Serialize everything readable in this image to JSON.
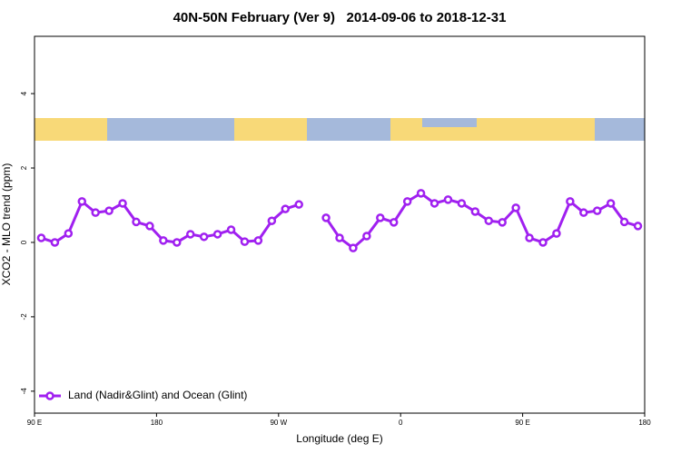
{
  "chart_data": {
    "type": "line",
    "title": "40N-50N February (Ver 9)   2014-09-06 to 2018-12-31",
    "xlabel": "Longitude (deg E)",
    "ylabel": "XCO2 - MLO trend (ppm)",
    "x": [
      95,
      105,
      115,
      125,
      135,
      145,
      155,
      165,
      175,
      185,
      195,
      205,
      215,
      225,
      235,
      245,
      255,
      265,
      275,
      285,
      295,
      305,
      315,
      325,
      335,
      345,
      355,
      365,
      375,
      385,
      395,
      405,
      415,
      425,
      435,
      445,
      455,
      465,
      475,
      485,
      495,
      505,
      515,
      525,
      535
    ],
    "series": [
      {
        "name": "Land (Nadir&Glint) and Ocean (Glint)",
        "color": "#a020f0",
        "values": [
          0.12,
          0.0,
          0.24,
          1.1,
          0.8,
          0.85,
          1.05,
          0.55,
          0.44,
          0.05,
          0.0,
          0.22,
          0.15,
          0.22,
          0.34,
          0.02,
          0.05,
          0.58,
          0.9,
          1.02,
          null,
          0.66,
          0.12,
          -0.15,
          0.17,
          0.66,
          0.54,
          1.1,
          1.32,
          1.05,
          1.15,
          1.05,
          0.83,
          0.58,
          0.54,
          0.93,
          0.12,
          0.0,
          0.24,
          1.1,
          0.8,
          0.85,
          1.05,
          0.55,
          0.44
        ]
      }
    ],
    "xlim": [
      90,
      540
    ],
    "xticks": [
      {
        "value": 90,
        "label": "90 E"
      },
      180,
      {
        "value": 270,
        "label": "90 W"
      },
      {
        "value": 360,
        "label": "0"
      },
      {
        "value": 450,
        "label": "90 E"
      },
      {
        "value": 540,
        "label": "180"
      }
    ],
    "ylim": [
      -4.59,
      5.54
    ],
    "yticks": [
      -4,
      -2,
      0,
      2,
      4
    ],
    "legend": "bottom-left"
  }
}
